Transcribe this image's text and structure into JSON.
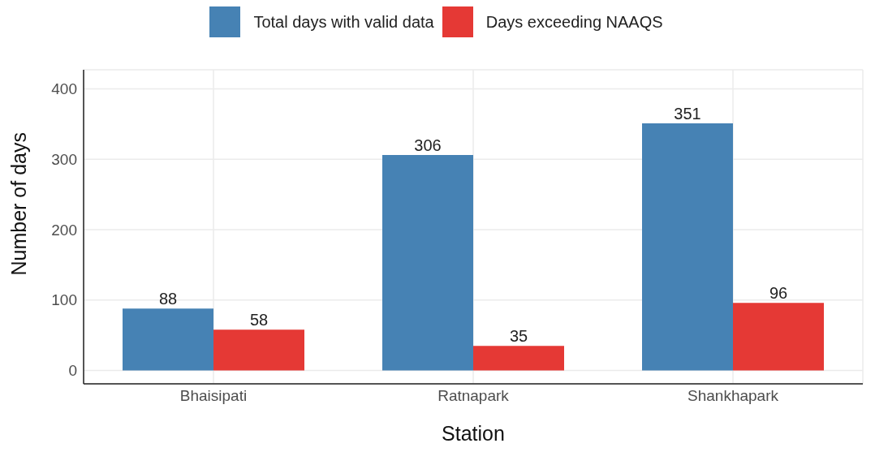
{
  "chart_data": {
    "type": "bar",
    "xlabel": "Station",
    "ylabel": "Number of days",
    "categories": [
      "Bhaisipati",
      "Ratnapark",
      "Shankhapark"
    ],
    "series": [
      {
        "name": "Total days with valid data",
        "color": "#4682b4",
        "values": [
          88,
          306,
          351
        ]
      },
      {
        "name": "Days exceeding NAAQS",
        "color": "#e53935",
        "values": [
          58,
          35,
          96
        ]
      }
    ],
    "ylim": [
      -19,
      427
    ],
    "yticks": [
      0,
      100,
      200,
      300,
      400
    ],
    "grid": true,
    "legend": "top",
    "data_labels": true
  }
}
